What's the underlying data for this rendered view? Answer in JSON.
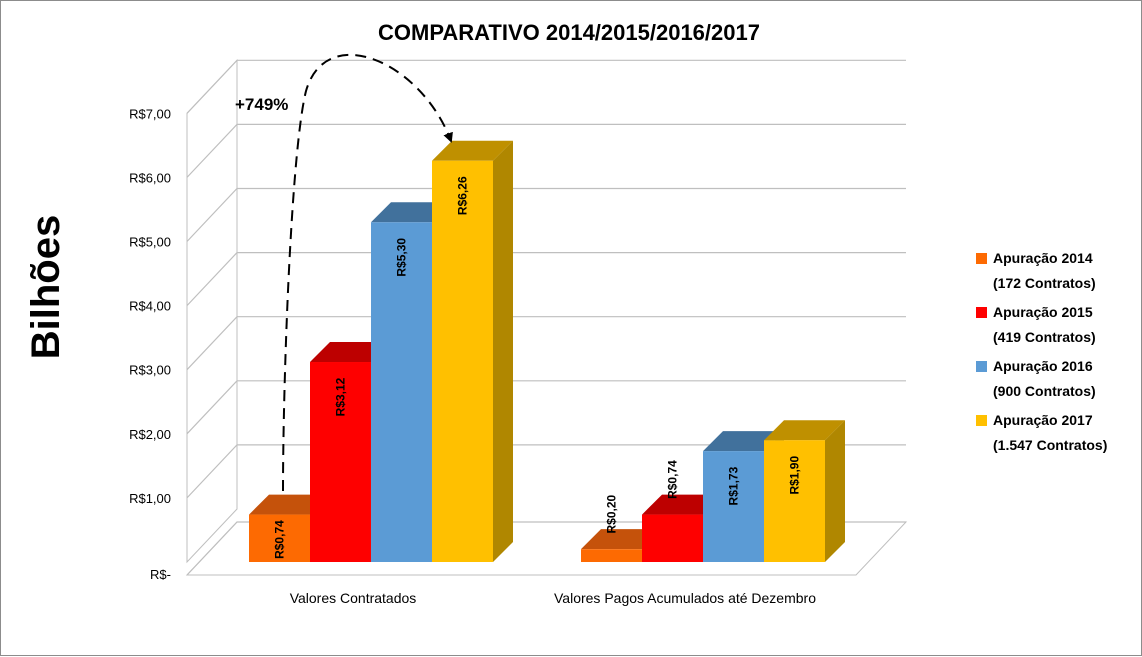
{
  "chart_data": {
    "type": "bar",
    "title": "COMPARATIVO 2014/2015/2016/2017",
    "ylabel": "Bilhões",
    "xlabel": "",
    "ylim": [
      0,
      7
    ],
    "yticks": [
      "R$-",
      "R$1,00",
      "R$2,00",
      "R$3,00",
      "R$4,00",
      "R$5,00",
      "R$6,00",
      "R$7,00"
    ],
    "categories": [
      "Valores Contratados",
      "Valores Pagos Acumulados até Dezembro"
    ],
    "grid": true,
    "legend_position": "right",
    "style": "3d",
    "series": [
      {
        "name": "Apuração 2014",
        "name2": "(172 Contratos)",
        "values": [
          0.74,
          0.2
        ],
        "labels": [
          "R$0,74",
          "R$0,20"
        ],
        "color": "#fd6a02",
        "top": "#c5520b",
        "side": "#a84600"
      },
      {
        "name": "Apuração 2015",
        "name2": "(419 Contratos)",
        "values": [
          3.12,
          0.74
        ],
        "labels": [
          "R$3,12",
          "R$0,74"
        ],
        "color": "#fe0000",
        "top": "#bd0000",
        "side": "#a30000"
      },
      {
        "name": "Apuração 2016",
        "name2": "(900 Contratos)",
        "values": [
          5.3,
          1.73
        ],
        "labels": [
          "R$5,30",
          "R$1,73"
        ],
        "color": "#5b9bd5",
        "top": "#41719c",
        "side": "#2e5b85"
      },
      {
        "name": "Apuração 2017",
        "name2": "(1.547 Contratos)",
        "values": [
          6.26,
          1.9
        ],
        "labels": [
          "R$6,26",
          "R$1,90"
        ],
        "color": "#ffc000",
        "top": "#bf9000",
        "side": "#b08700"
      }
    ],
    "annotations": [
      {
        "text": "+749%"
      }
    ]
  }
}
